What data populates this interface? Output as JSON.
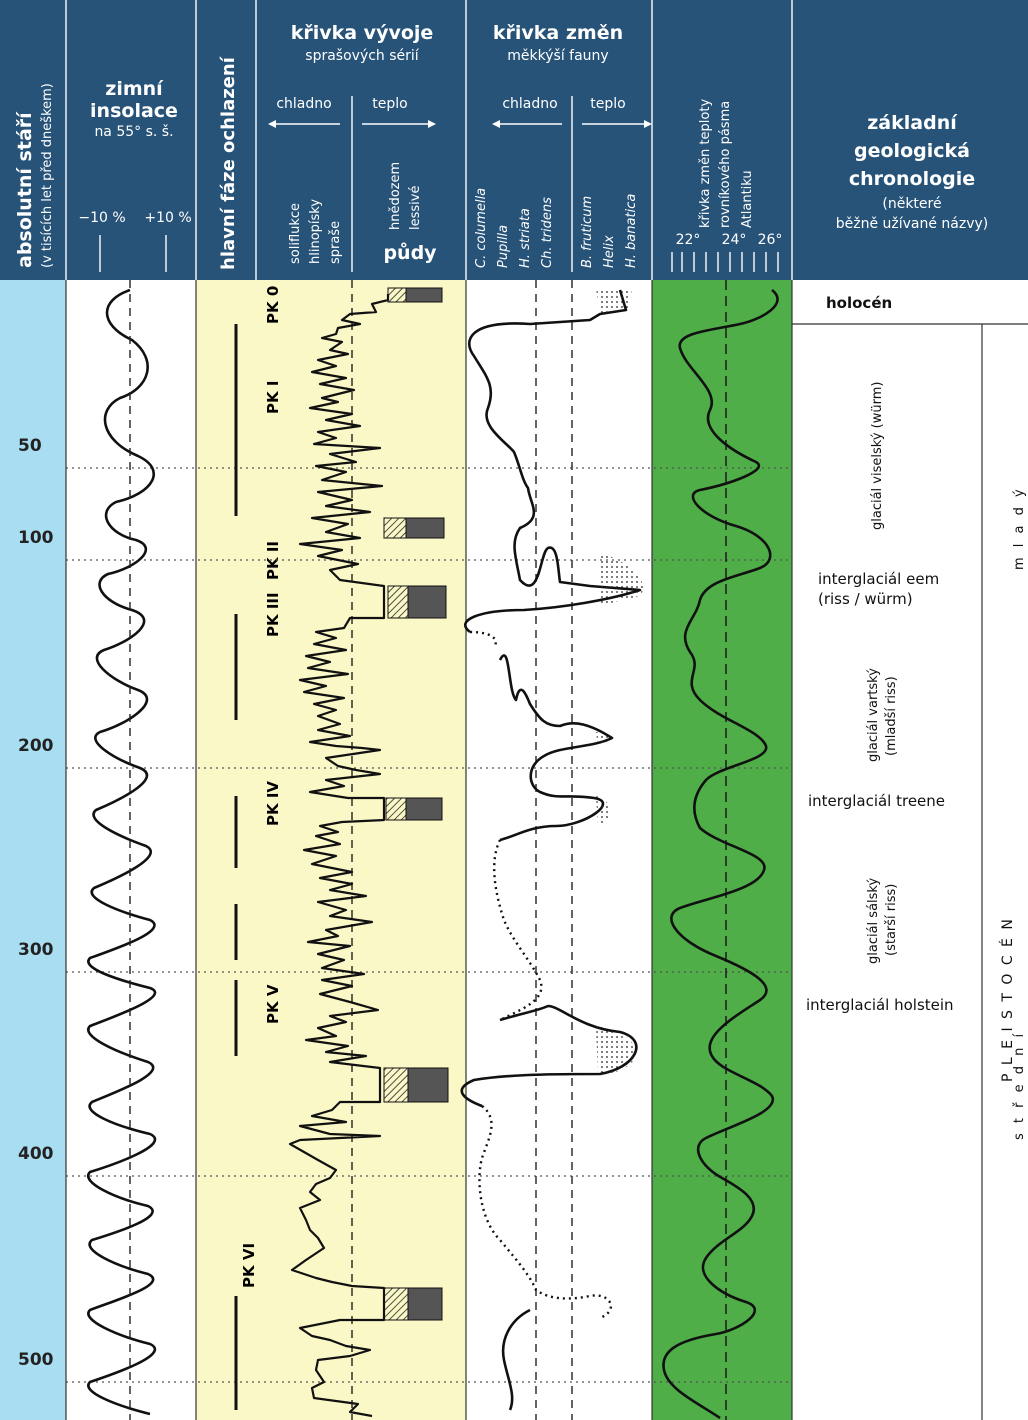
{
  "header": {
    "age_title": "absolutní stáří",
    "age_sub": "(v tisících let před dneškem)",
    "insolation_title_1": "zimní",
    "insolation_title_2": "insolace",
    "insolation_sub": "na 55° s. š.",
    "insolation_minus": "−10 %",
    "insolation_plus": "+10 %",
    "cooling_title": "hlavní fáze ochlazení",
    "loess_title": "křivka vývoje",
    "loess_sub": "sprašových sérií",
    "loess_cold": "chladno",
    "loess_warm": "teplo",
    "loess_col1": "soliflukce",
    "loess_col2": "hlinopísky",
    "loess_col3": "spraše",
    "loess_col4": "hnědozem",
    "loess_col5": "lessivé",
    "soils": "půdy",
    "fauna_title": "křivka změn",
    "fauna_sub": "měkkýší fauny",
    "fauna_cold": "chladno",
    "fauna_warm": "teplo",
    "fauna_sp1": "C. columella",
    "fauna_sp2": "Pupilla",
    "fauna_sp3": "H. striata",
    "fauna_sp4": "Ch. tridens",
    "fauna_sp5": "B. fruticum",
    "fauna_sp6": "Helix",
    "fauna_sp7": "H. banatica",
    "temp_title_1": "křivka změn teploty",
    "temp_title_2": "rovníkového pásma",
    "temp_title_3": "Atlantiku",
    "temp_t1": "22°",
    "temp_t2": "24°",
    "temp_t3": "26°",
    "chrono_title_1": "základní",
    "chrono_title_2": "geologická",
    "chrono_title_3": "chronologie",
    "chrono_sub_1": "(některé",
    "chrono_sub_2": "běžně užívané názvy)"
  },
  "ages": [
    "50",
    "100",
    "200",
    "300",
    "400",
    "500"
  ],
  "pk_labels": [
    "PK 0",
    "PK I",
    "PK II",
    "PK III",
    "PK IV",
    "PK V",
    "PK VI"
  ],
  "chronology": {
    "holocene": "holocén",
    "vistulian": "glaciál viselský (würm)",
    "eem_1": "interglaciál eem",
    "eem_2": "(riss / würm)",
    "warta_1": "glaciál vartský",
    "warta_2": "(mladší riss)",
    "treene": "interglaciál treene",
    "saale_1": "glaciál sálský",
    "saale_2": "(starší riss)",
    "holstein": "interglaciál holstein",
    "pleistocene": "P L E I S T O C É N",
    "young": "m l a d ý",
    "middle": "s t ř e d n í"
  },
  "colors": {
    "header": "#275379",
    "age_band": "#a9def2",
    "cooling_band": "#fbf8c7",
    "loess_band": "#fbf8c7",
    "temp_band": "#4fae48"
  }
}
